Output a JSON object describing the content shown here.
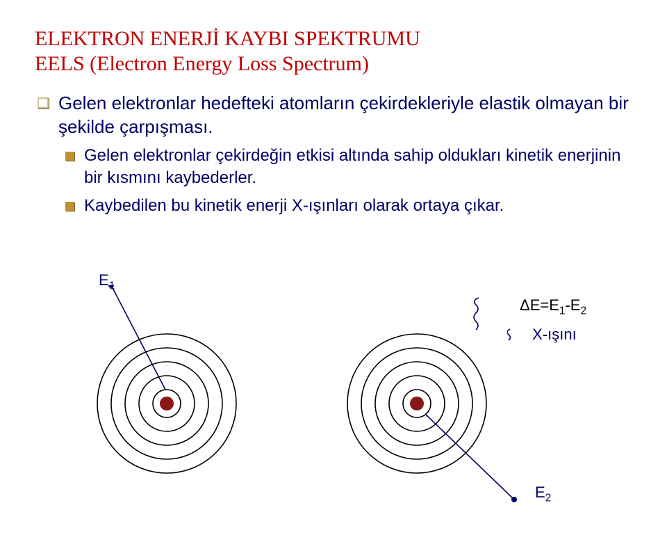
{
  "colors": {
    "title": "#c00000",
    "navy": "#000066",
    "black": "#000000",
    "bullet_sq_border": "#d0c088",
    "bullet_solid": "#c09030",
    "bullet_shadow": "#706040",
    "bg": "#ffffff"
  },
  "title": {
    "line1": "ELEKTRON ENERJİ KAYBI SPEKTRUMU",
    "line2": "EELS (Electron Energy Loss Spectrum)"
  },
  "body": {
    "p1": "Gelen elektronlar hedefteki atomların çekirdekleriyle elastik olmayan bir şekilde çarpışması.",
    "s1": "Gelen elektronlar çekirdeğin etkisi altında sahip oldukları kinetik enerjinin bir kısmını kaybederler.",
    "s2": "Kaybedilen bu kinetik enerji X-ışınları olarak ortaya çıkar."
  },
  "labels": {
    "e1": "E",
    "e1_sub": "1",
    "de": "ΔE=E",
    "de_sub1": "1",
    "de_mid": "-E",
    "de_sub2": "2",
    "xray": "X-ışını",
    "e2": "E",
    "e2_sub": "2"
  },
  "atom": {
    "radii": [
      20,
      40,
      60,
      80,
      100
    ],
    "nucleus_r": 10,
    "orbit_stroke": "#000000",
    "orbit_width": 1.6,
    "nucleus_fill": "#8a1818"
  },
  "electron_line": {
    "stroke": "#000066",
    "width": 1.6
  },
  "squiggle": {
    "stroke": "#000066",
    "width": 1.6
  }
}
